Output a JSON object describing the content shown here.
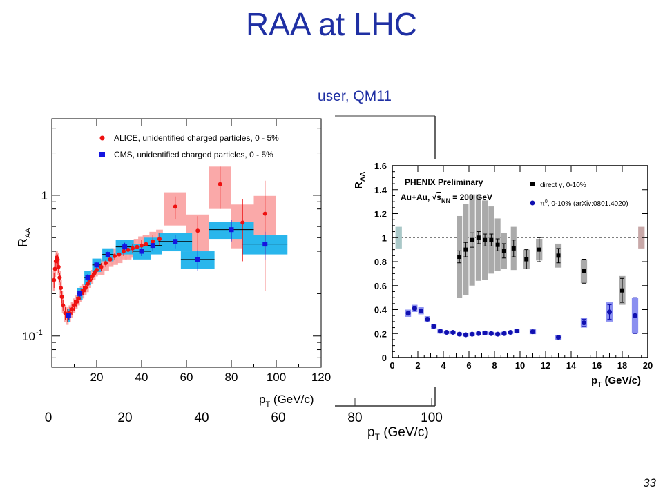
{
  "slide": {
    "title": "RAA at LHC",
    "subtitle": "user, QM11",
    "page_number": "33"
  },
  "background_axis": {
    "x_ticks": [
      "0",
      "20",
      "40",
      "60",
      "80",
      "100"
    ],
    "xlabel": "p",
    "xlabel_sub": "T",
    "xlabel_unit": " (GeV/c)"
  },
  "chart_data": [
    {
      "type": "scatter",
      "title": "",
      "ylabel": "R",
      "ylabel_sub": "AA",
      "xlabel": "p",
      "xlabel_sub": "T",
      "xlabel_unit": " (GeV/c)",
      "xlim": [
        0,
        120
      ],
      "ylim": [
        0.06,
        3.5
      ],
      "yscale": "log",
      "x_ticks": [
        "20",
        "40",
        "60",
        "80",
        "100",
        "120"
      ],
      "y_ticks": [
        {
          "value": 1,
          "label": "1",
          "sup": ""
        },
        {
          "value": 0.1,
          "label": "10",
          "sup": "-1"
        }
      ],
      "legend_position": "top-left",
      "series": [
        {
          "name": "ALICE, unidentified charged particles, 0 - 5%",
          "color": "#ee1111",
          "box_color": "#f9a0a0",
          "marker": "circle",
          "points": [
            {
              "x": 1.0,
              "y": 0.25,
              "dy": 0.03,
              "sy": 0.04
            },
            {
              "x": 1.4,
              "y": 0.3,
              "dy": 0.03,
              "sy": 0.04
            },
            {
              "x": 1.8,
              "y": 0.34,
              "dy": 0.03,
              "sy": 0.04
            },
            {
              "x": 2.2,
              "y": 0.36,
              "dy": 0.03,
              "sy": 0.04
            },
            {
              "x": 2.6,
              "y": 0.35,
              "dy": 0.03,
              "sy": 0.04
            },
            {
              "x": 3.0,
              "y": 0.31,
              "dy": 0.03,
              "sy": 0.04
            },
            {
              "x": 3.5,
              "y": 0.26,
              "dy": 0.02,
              "sy": 0.03
            },
            {
              "x": 4.0,
              "y": 0.22,
              "dy": 0.02,
              "sy": 0.03
            },
            {
              "x": 4.5,
              "y": 0.19,
              "dy": 0.02,
              "sy": 0.02
            },
            {
              "x": 5.0,
              "y": 0.165,
              "dy": 0.015,
              "sy": 0.02
            },
            {
              "x": 6.0,
              "y": 0.145,
              "dy": 0.015,
              "sy": 0.02
            },
            {
              "x": 7.0,
              "y": 0.14,
              "dy": 0.015,
              "sy": 0.02
            },
            {
              "x": 8.0,
              "y": 0.145,
              "dy": 0.015,
              "sy": 0.02
            },
            {
              "x": 9.0,
              "y": 0.155,
              "dy": 0.015,
              "sy": 0.02
            },
            {
              "x": 10.0,
              "y": 0.165,
              "dy": 0.015,
              "sy": 0.02
            },
            {
              "x": 11.0,
              "y": 0.175,
              "dy": 0.015,
              "sy": 0.02
            },
            {
              "x": 12.0,
              "y": 0.185,
              "dy": 0.015,
              "sy": 0.02
            },
            {
              "x": 13.0,
              "y": 0.2,
              "dy": 0.015,
              "sy": 0.025
            },
            {
              "x": 14.0,
              "y": 0.21,
              "dy": 0.015,
              "sy": 0.025
            },
            {
              "x": 15.0,
              "y": 0.22,
              "dy": 0.015,
              "sy": 0.025
            },
            {
              "x": 16.0,
              "y": 0.235,
              "dy": 0.015,
              "sy": 0.03
            },
            {
              "x": 17.0,
              "y": 0.25,
              "dy": 0.015,
              "sy": 0.03
            },
            {
              "x": 18.0,
              "y": 0.265,
              "dy": 0.015,
              "sy": 0.03
            },
            {
              "x": 19.0,
              "y": 0.28,
              "dy": 0.015,
              "sy": 0.03
            },
            {
              "x": 20.0,
              "y": 0.295,
              "dy": 0.015,
              "sy": 0.03
            },
            {
              "x": 22.0,
              "y": 0.31,
              "dy": 0.02,
              "sy": 0.04
            },
            {
              "x": 24.0,
              "y": 0.33,
              "dy": 0.02,
              "sy": 0.04
            },
            {
              "x": 26.0,
              "y": 0.35,
              "dy": 0.02,
              "sy": 0.04
            },
            {
              "x": 28.0,
              "y": 0.37,
              "dy": 0.02,
              "sy": 0.05
            },
            {
              "x": 30.0,
              "y": 0.38,
              "dy": 0.03,
              "sy": 0.05
            },
            {
              "x": 32.0,
              "y": 0.4,
              "dy": 0.03,
              "sy": 0.05
            },
            {
              "x": 34.0,
              "y": 0.41,
              "dy": 0.03,
              "sy": 0.06
            },
            {
              "x": 36.0,
              "y": 0.42,
              "dy": 0.03,
              "sy": 0.06
            },
            {
              "x": 38.0,
              "y": 0.43,
              "dy": 0.04,
              "sy": 0.06
            },
            {
              "x": 40.0,
              "y": 0.44,
              "dy": 0.04,
              "sy": 0.07
            },
            {
              "x": 42.0,
              "y": 0.45,
              "dy": 0.04,
              "sy": 0.07
            },
            {
              "x": 45.0,
              "y": 0.47,
              "dy": 0.05,
              "sy": 0.08
            },
            {
              "x": 48.0,
              "y": 0.49,
              "dy": 0.05,
              "sy": 0.08
            },
            {
              "x": 55.0,
              "y": 0.83,
              "dy": 0.15,
              "sy": 0.22
            },
            {
              "x": 65.0,
              "y": 0.56,
              "dy": 0.15,
              "sy": 0.17
            },
            {
              "x": 75.0,
              "y": 1.2,
              "dy": 0.4,
              "sy": 0.4
            },
            {
              "x": 85.0,
              "y": 0.64,
              "dy": 0.3,
              "sy": 0.22
            },
            {
              "x": 95.0,
              "y": 0.74,
              "dy": 0.53,
              "sy": 0.25
            }
          ]
        },
        {
          "name": "CMS, unidentified charged particles, 0 - 5%",
          "color": "#1515e0",
          "box_color": "#29b6ec",
          "marker": "square",
          "points": [
            {
              "x": 7.5,
              "y": 0.14,
              "dx": 0.7,
              "dy": 0.01,
              "sy": 0.015
            },
            {
              "x": 12.5,
              "y": 0.2,
              "dx": 1.2,
              "dy": 0.01,
              "sy": 0.02
            },
            {
              "x": 16.0,
              "y": 0.26,
              "dx": 1.5,
              "dy": 0.015,
              "sy": 0.03
            },
            {
              "x": 20.0,
              "y": 0.32,
              "dx": 2.0,
              "dy": 0.015,
              "sy": 0.035
            },
            {
              "x": 25.0,
              "y": 0.38,
              "dx": 2.5,
              "dy": 0.02,
              "sy": 0.04
            },
            {
              "x": 32.5,
              "y": 0.43,
              "dx": 4.0,
              "dy": 0.03,
              "sy": 0.05
            },
            {
              "x": 40.0,
              "y": 0.4,
              "dx": 4.0,
              "dy": 0.03,
              "sy": 0.05
            },
            {
              "x": 45.0,
              "y": 0.44,
              "dx": 4.0,
              "dy": 0.04,
              "sy": 0.06
            },
            {
              "x": 55.0,
              "y": 0.47,
              "dx": 7.5,
              "dy": 0.05,
              "sy": 0.07
            },
            {
              "x": 65.0,
              "y": 0.35,
              "dx": 7.5,
              "dy": 0.06,
              "sy": 0.05
            },
            {
              "x": 80.0,
              "y": 0.57,
              "dx": 10.0,
              "dy": 0.1,
              "sy": 0.08
            },
            {
              "x": 95.0,
              "y": 0.45,
              "dx": 10.0,
              "dy": 0.1,
              "sy": 0.07
            }
          ]
        }
      ]
    },
    {
      "type": "scatter",
      "title": "PHENIX Preliminary",
      "annotation": "Au+Au, √s_NN = 200 GeV",
      "annotation_parts": {
        "pre": "Au+Au, ",
        "sqrt": "s",
        "sub": "NN",
        "post": " = 200 GeV"
      },
      "ylabel": "R",
      "ylabel_sub": "AA",
      "xlabel": "p",
      "xlabel_sub": "T",
      "xlabel_unit": " (GeV/c)",
      "xlim": [
        0,
        20
      ],
      "ylim": [
        0,
        1.6
      ],
      "yscale": "linear",
      "x_ticks": [
        "0",
        "2",
        "4",
        "6",
        "8",
        "10",
        "12",
        "14",
        "16",
        "18",
        "20"
      ],
      "y_ticks": [
        "0",
        "0.2",
        "0.4",
        "0.6",
        "0.8",
        "1",
        "1.2",
        "1.4",
        "1.6"
      ],
      "reference_line": 1,
      "legend_position": "top-right",
      "series": [
        {
          "name": "direct γ, 0-10%",
          "color": "#000000",
          "box_color": "#aaaaaa",
          "marker": "square",
          "points": [
            {
              "x": 5.25,
              "y": 0.84,
              "dy": 0.05,
              "sy": 0.34
            },
            {
              "x": 5.75,
              "y": 0.9,
              "dy": 0.06,
              "sy": 0.38
            },
            {
              "x": 6.25,
              "y": 0.98,
              "dy": 0.06,
              "sy": 0.38
            },
            {
              "x": 6.75,
              "y": 1.0,
              "dy": 0.05,
              "sy": 0.36
            },
            {
              "x": 7.25,
              "y": 0.98,
              "dy": 0.05,
              "sy": 0.33
            },
            {
              "x": 7.75,
              "y": 0.98,
              "dy": 0.05,
              "sy": 0.28
            },
            {
              "x": 8.25,
              "y": 0.94,
              "dy": 0.05,
              "sy": 0.22
            },
            {
              "x": 8.75,
              "y": 0.89,
              "dy": 0.06,
              "sy": 0.15
            },
            {
              "x": 9.5,
              "y": 0.91,
              "dy": 0.07,
              "sy": 0.18
            },
            {
              "x": 10.5,
              "y": 0.82,
              "dy": 0.08,
              "sy": 0.08
            },
            {
              "x": 11.5,
              "y": 0.9,
              "dy": 0.1,
              "sy": 0.09
            },
            {
              "x": 13.0,
              "y": 0.85,
              "dy": 0.06,
              "sy": 0.1
            },
            {
              "x": 15.0,
              "y": 0.72,
              "dy": 0.1,
              "sy": 0.1
            },
            {
              "x": 18.0,
              "y": 0.56,
              "dy": 0.1,
              "sy": 0.12
            }
          ]
        },
        {
          "name": "π0, 0-10% (arXiv:0801.4020)",
          "name_parts": {
            "pi": "π",
            "sup": "0",
            "rest": ", 0-10% (arXiv:0801.4020)"
          },
          "color": "#1010b0",
          "box_color": "#8a8ff0",
          "marker": "circle",
          "points": [
            {
              "x": 1.25,
              "y": 0.37,
              "dy": 0.01,
              "sy": 0.03
            },
            {
              "x": 1.75,
              "y": 0.41,
              "dy": 0.01,
              "sy": 0.03
            },
            {
              "x": 2.25,
              "y": 0.39,
              "dy": 0.01,
              "sy": 0.03
            },
            {
              "x": 2.75,
              "y": 0.32,
              "dy": 0.01,
              "sy": 0.025
            },
            {
              "x": 3.25,
              "y": 0.26,
              "dy": 0.01,
              "sy": 0.02
            },
            {
              "x": 3.75,
              "y": 0.22,
              "dy": 0.01,
              "sy": 0.02
            },
            {
              "x": 4.25,
              "y": 0.21,
              "dy": 0.01,
              "sy": 0.015
            },
            {
              "x": 4.75,
              "y": 0.21,
              "dy": 0.01,
              "sy": 0.015
            },
            {
              "x": 5.25,
              "y": 0.195,
              "dy": 0.01,
              "sy": 0.015
            },
            {
              "x": 5.75,
              "y": 0.19,
              "dy": 0.01,
              "sy": 0.015
            },
            {
              "x": 6.25,
              "y": 0.195,
              "dy": 0.01,
              "sy": 0.015
            },
            {
              "x": 6.75,
              "y": 0.2,
              "dy": 0.01,
              "sy": 0.015
            },
            {
              "x": 7.25,
              "y": 0.205,
              "dy": 0.01,
              "sy": 0.015
            },
            {
              "x": 7.75,
              "y": 0.2,
              "dy": 0.01,
              "sy": 0.015
            },
            {
              "x": 8.25,
              "y": 0.195,
              "dy": 0.01,
              "sy": 0.015
            },
            {
              "x": 8.75,
              "y": 0.2,
              "dy": 0.01,
              "sy": 0.015
            },
            {
              "x": 9.25,
              "y": 0.21,
              "dy": 0.01,
              "sy": 0.015
            },
            {
              "x": 9.75,
              "y": 0.22,
              "dy": 0.01,
              "sy": 0.015
            },
            {
              "x": 11.0,
              "y": 0.215,
              "dy": 0.015,
              "sy": 0.02
            },
            {
              "x": 13.0,
              "y": 0.17,
              "dy": 0.015,
              "sy": 0.02
            },
            {
              "x": 15.0,
              "y": 0.29,
              "dy": 0.03,
              "sy": 0.04
            },
            {
              "x": 17.0,
              "y": 0.38,
              "dy": 0.06,
              "sy": 0.08
            },
            {
              "x": 19.0,
              "y": 0.35,
              "dy": 0.15,
              "sy": 0.15
            }
          ]
        }
      ],
      "norm_boxes": [
        {
          "x": 0.5,
          "y": 1.0,
          "half_height": 0.09,
          "color": "#a9c8c8"
        },
        {
          "x": 19.5,
          "y": 1.0,
          "half_height": 0.09,
          "color": "#c8a8a8"
        }
      ]
    }
  ]
}
